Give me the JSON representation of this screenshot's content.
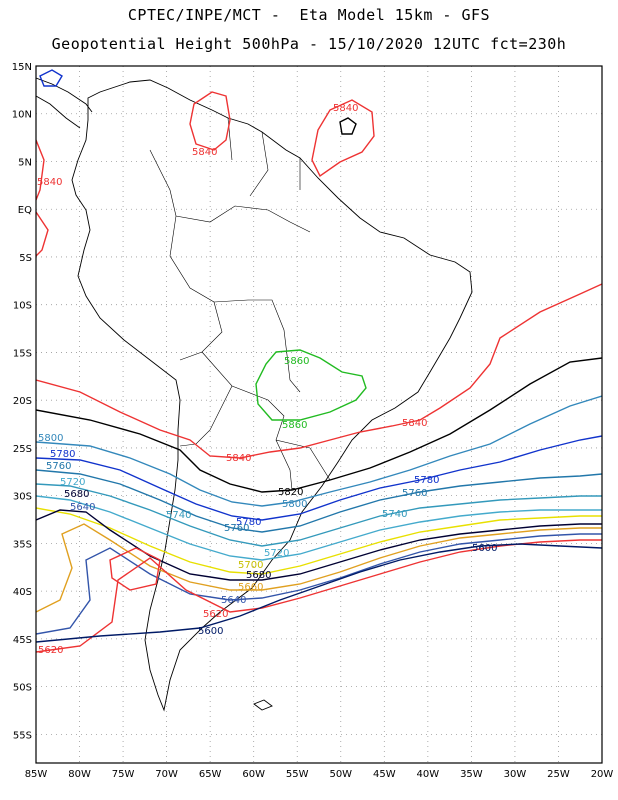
{
  "header": {
    "line1": "CPTEC/INPE/MCT -  Eta Model 15km - GFS",
    "line2": "Geopotential Height 500hPa - 15/10/2020 12UTC fct=230h"
  },
  "axes": {
    "lat_labels": [
      "15N",
      "10N",
      "5N",
      "EQ",
      "5S",
      "10S",
      "15S",
      "20S",
      "25S",
      "30S",
      "35S",
      "40S",
      "45S",
      "50S",
      "55S"
    ],
    "lon_labels": [
      "85W",
      "80W",
      "75W",
      "70W",
      "65W",
      "60W",
      "55W",
      "50W",
      "45W",
      "40W",
      "35W",
      "30W",
      "25W",
      "20W"
    ],
    "lat_range": [
      15,
      -58
    ],
    "lon_range": [
      -85,
      -20
    ],
    "grid": "dotted"
  },
  "contours": [
    {
      "level": "5860",
      "color": "#22bb22"
    },
    {
      "level": "5840",
      "color": "#ee3333"
    },
    {
      "level": "5820",
      "color": "#000000"
    },
    {
      "level": "5800",
      "color": "#3388bb"
    },
    {
      "level": "5780",
      "color": "#1133cc"
    },
    {
      "level": "5760",
      "color": "#2277aa"
    },
    {
      "level": "5740",
      "color": "#3399bb"
    },
    {
      "level": "5720",
      "color": "#44aacc"
    },
    {
      "level": "5700",
      "color": "#e8e000"
    },
    {
      "level": "5680",
      "color": "#000033"
    },
    {
      "level": "5660",
      "color": "#e0a020"
    },
    {
      "level": "5640",
      "color": "#3355aa"
    },
    {
      "level": "5620",
      "color": "#ee3333"
    },
    {
      "level": "5600",
      "color": "#001a66"
    }
  ]
}
